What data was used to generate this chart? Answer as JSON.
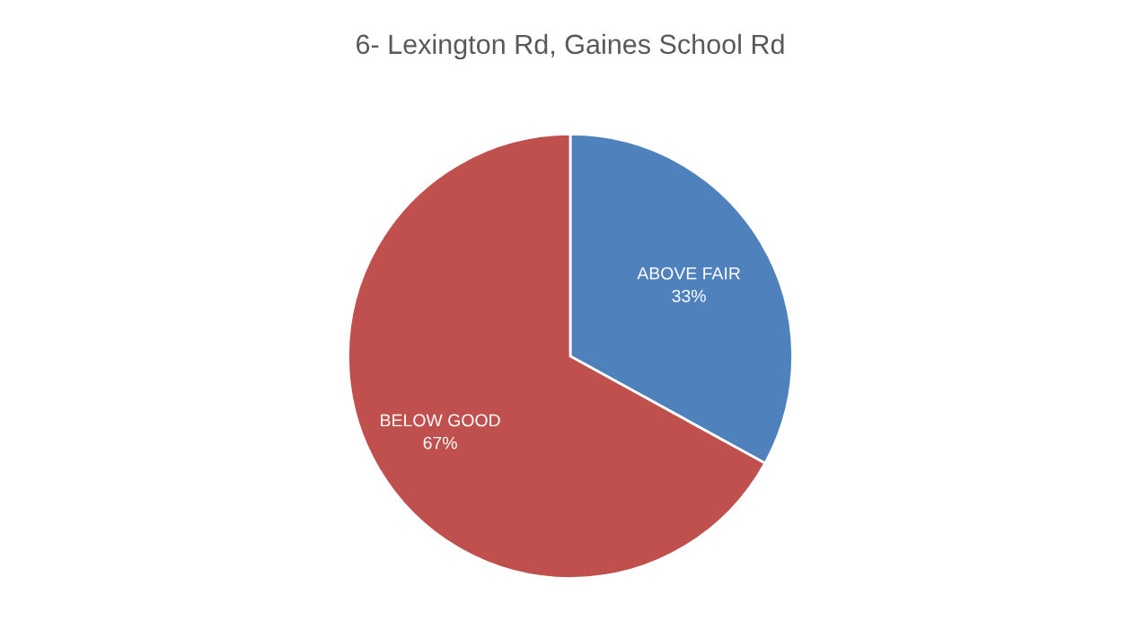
{
  "chart_data": {
    "type": "pie",
    "title": "6- Lexington Rd, Gaines School Rd",
    "categories": [
      "ABOVE FAIR",
      "BELOW GOOD"
    ],
    "values": [
      33,
      67
    ],
    "colors": [
      "#4f81bd",
      "#c0504d"
    ],
    "value_labels": [
      "33%",
      "67%"
    ],
    "legend": false
  }
}
